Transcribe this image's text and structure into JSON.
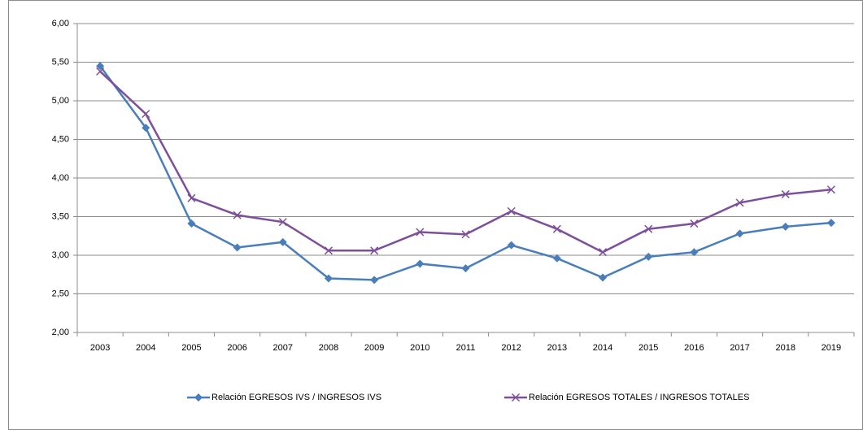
{
  "chart_data": {
    "type": "line",
    "categories": [
      "2003",
      "2004",
      "2005",
      "2006",
      "2007",
      "2008",
      "2009",
      "2010",
      "2011",
      "2012",
      "2013",
      "2014",
      "2015",
      "2016",
      "2017",
      "2018",
      "2019"
    ],
    "series": [
      {
        "name": "Relación EGRESOS IVS / INGRESOS IVS",
        "color": "#4a7ebb",
        "marker": "diamond",
        "values": [
          5.45,
          4.65,
          3.41,
          3.1,
          3.17,
          2.7,
          2.68,
          2.89,
          2.83,
          3.13,
          2.96,
          2.71,
          2.98,
          3.04,
          3.28,
          3.37,
          3.42
        ]
      },
      {
        "name": "Relación EGRESOS TOTALES / INGRESOS TOTALES",
        "color": "#7d4f9b",
        "marker": "x",
        "values": [
          5.38,
          4.83,
          3.74,
          3.52,
          3.43,
          3.06,
          3.06,
          3.3,
          3.27,
          3.57,
          3.34,
          3.04,
          3.34,
          3.41,
          3.68,
          3.79,
          3.85
        ]
      }
    ],
    "ylim": [
      2,
      6
    ],
    "yticks": [
      {
        "value": 2,
        "label": "2,00"
      },
      {
        "value": 2.5,
        "label": "2,50"
      },
      {
        "value": 3,
        "label": "3,00"
      },
      {
        "value": 3.5,
        "label": "3,50"
      },
      {
        "value": 4,
        "label": "4,00"
      },
      {
        "value": 4.5,
        "label": "4,50"
      },
      {
        "value": 5,
        "label": "5,00"
      },
      {
        "value": 5.5,
        "label": "5,50"
      },
      {
        "value": 6,
        "label": "6,00"
      }
    ],
    "grid": true,
    "legend": "bottom"
  }
}
